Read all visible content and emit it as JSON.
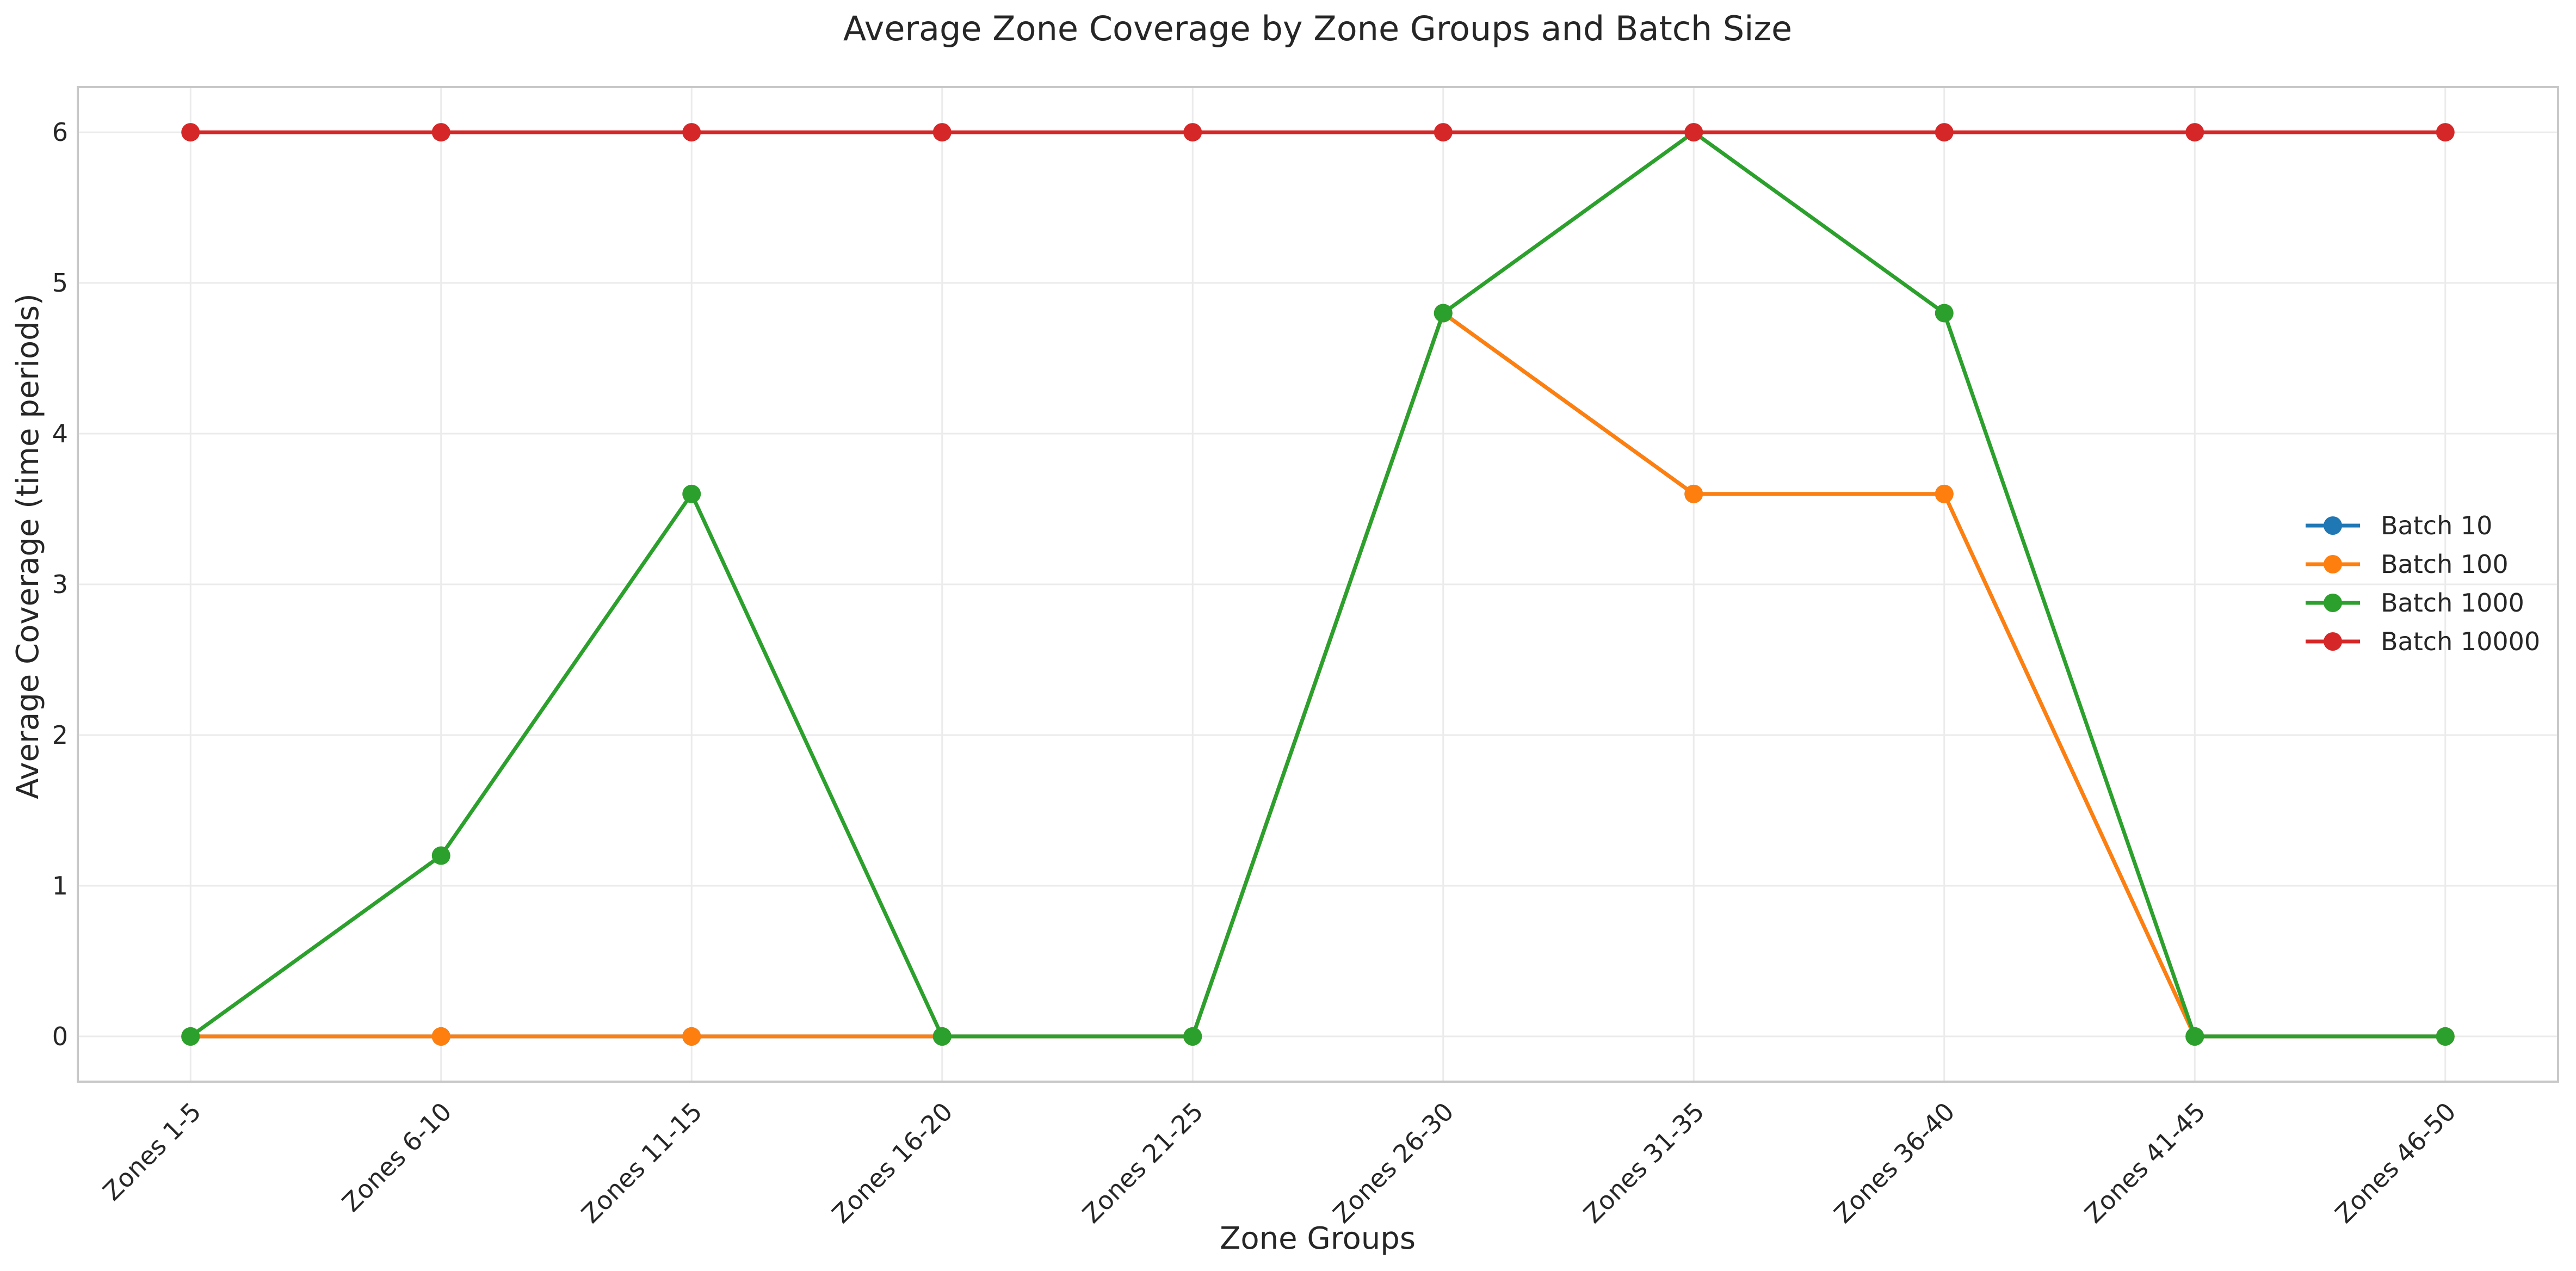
{
  "chart_data": {
    "type": "line",
    "title": "Average Zone Coverage by Zone Groups and Batch Size",
    "xlabel": "Zone Groups",
    "ylabel": "Average Coverage (time periods)",
    "categories": [
      "Zones 1-5",
      "Zones 6-10",
      "Zones 11-15",
      "Zones 16-20",
      "Zones 21-25",
      "Zones 26-30",
      "Zones 31-35",
      "Zones 36-40",
      "Zones 41-45",
      "Zones 46-50"
    ],
    "ylim": [
      -0.3,
      6.3
    ],
    "yticks": [
      0,
      1,
      2,
      3,
      4,
      5,
      6
    ],
    "grid": true,
    "legend_position": "right",
    "series": [
      {
        "name": "Batch 10",
        "color": "#1f77b4",
        "values": [
          0,
          0,
          0,
          0,
          0,
          4.8,
          3.6,
          3.6,
          0,
          0
        ]
      },
      {
        "name": "Batch 100",
        "color": "#ff7f0e",
        "values": [
          0,
          0,
          0,
          0,
          0,
          4.8,
          3.6,
          3.6,
          0,
          0
        ]
      },
      {
        "name": "Batch 1000",
        "color": "#2ca02c",
        "values": [
          0,
          1.2,
          3.6,
          0,
          0,
          4.8,
          6,
          4.8,
          0,
          0
        ]
      },
      {
        "name": "Batch 10000",
        "color": "#d62728",
        "values": [
          6,
          6,
          6,
          6,
          6,
          6,
          6,
          6,
          6,
          6
        ]
      }
    ]
  }
}
